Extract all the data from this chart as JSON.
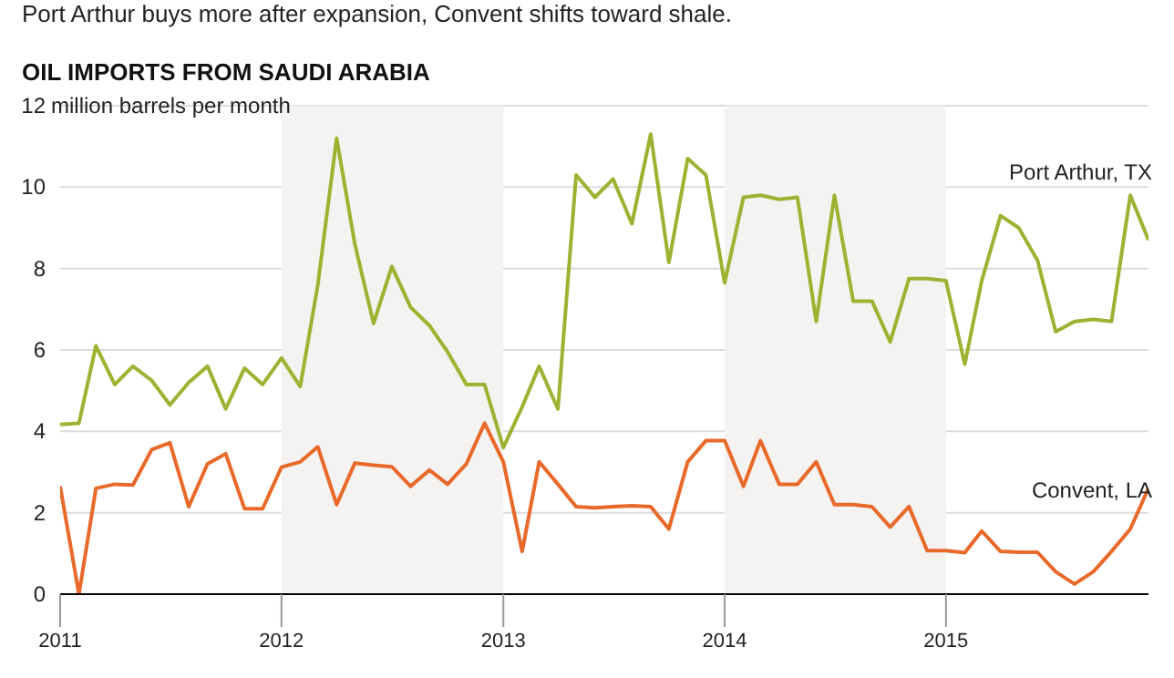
{
  "chart_data": {
    "type": "line",
    "subtitle": "Port Arthur buys more after expansion, Convent shifts toward shale.",
    "title": "OIL IMPORTS FROM SAUDI ARABIA",
    "x": [
      "2011-01",
      "2011-02",
      "2011-03",
      "2011-04",
      "2011-05",
      "2011-06",
      "2011-07",
      "2011-08",
      "2011-09",
      "2011-10",
      "2011-11",
      "2011-12",
      "2012-01",
      "2012-02",
      "2012-03",
      "2012-04",
      "2012-05",
      "2012-06",
      "2012-07",
      "2012-08",
      "2012-09",
      "2012-10",
      "2012-11",
      "2012-12",
      "2013-01",
      "2013-02",
      "2013-03",
      "2013-04",
      "2013-05",
      "2013-06",
      "2013-07",
      "2013-08",
      "2013-09",
      "2013-10",
      "2013-11",
      "2013-12",
      "2014-01",
      "2014-02",
      "2014-03",
      "2014-04",
      "2014-05",
      "2014-06",
      "2014-07",
      "2014-08",
      "2014-09",
      "2014-10",
      "2014-11",
      "2014-12",
      "2015-01",
      "2015-02",
      "2015-03",
      "2015-04",
      "2015-05",
      "2015-06",
      "2015-07",
      "2015-08",
      "2015-09",
      "2015-10",
      "2015-11",
      "2015-12"
    ],
    "series": [
      {
        "name": "Port Arthur, TX",
        "color": "#9cb332",
        "values": [
          4.17,
          4.2,
          6.1,
          5.15,
          5.6,
          5.25,
          4.65,
          5.2,
          5.6,
          4.55,
          5.55,
          5.15,
          5.8,
          5.1,
          7.6,
          11.2,
          8.6,
          6.65,
          8.05,
          7.05,
          6.6,
          5.95,
          5.15,
          5.15,
          3.6,
          4.6,
          5.6,
          4.55,
          10.3,
          9.75,
          10.2,
          9.1,
          11.3,
          8.15,
          10.7,
          10.3,
          7.65,
          9.75,
          9.8,
          9.7,
          9.75,
          6.7,
          9.8,
          7.2,
          7.2,
          6.2,
          7.75,
          7.75,
          7.7,
          5.65,
          7.7,
          9.3,
          9.0,
          8.2,
          6.45,
          6.7,
          6.75,
          6.7,
          9.8,
          8.7
        ]
      },
      {
        "name": "Convent, LA",
        "color": "#e8692a",
        "values": [
          2.65,
          0,
          2.6,
          2.7,
          2.68,
          3.55,
          3.72,
          2.15,
          3.2,
          3.45,
          2.1,
          2.1,
          3.12,
          3.25,
          3.62,
          2.2,
          3.22,
          3.17,
          3.13,
          2.65,
          3.05,
          2.7,
          3.2,
          4.2,
          3.25,
          1.05,
          3.25,
          2.7,
          2.15,
          2.12,
          2.15,
          2.17,
          2.15,
          1.6,
          3.25,
          3.77,
          3.77,
          2.65,
          3.77,
          2.7,
          2.7,
          3.25,
          2.2,
          2.2,
          2.15,
          1.65,
          2.15,
          1.07,
          1.07,
          1.02,
          1.55,
          1.05,
          1.03,
          1.03,
          0.55,
          0.25,
          0.55,
          1.05,
          1.6,
          2.6
        ]
      }
    ],
    "xlim": [
      "2011-01",
      "2015-12"
    ],
    "xticks": [
      "2011",
      "2012",
      "2013",
      "2014",
      "2015"
    ],
    "ylim": [
      0,
      12
    ],
    "yticks": [
      0,
      2,
      4,
      6,
      8,
      10,
      12
    ],
    "ylabel": "million barrels per month",
    "bands": [
      {
        "axis": "x",
        "from": "2012",
        "to": "2013",
        "color": "#f4f3f1"
      },
      {
        "axis": "x",
        "from": "2014",
        "to": "2015",
        "color": "#f4f3f1"
      }
    ],
    "grid": "y",
    "legend": false,
    "marker": "none",
    "line_style": "solid"
  }
}
